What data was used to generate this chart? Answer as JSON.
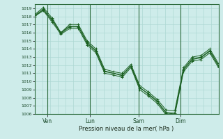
{
  "xlabel": "Pression niveau de la mer( hPa )",
  "background_color": "#ceecea",
  "grid_color": "#aed8d4",
  "line_color": "#1a6020",
  "vline_color": "#2a6a3a",
  "ylim": [
    1006,
    1019.5
  ],
  "yticks": [
    1006,
    1007,
    1008,
    1009,
    1010,
    1011,
    1012,
    1013,
    1014,
    1015,
    1016,
    1017,
    1018,
    1019
  ],
  "day_positions": [
    0.068,
    0.3,
    0.565,
    0.795
  ],
  "day_labels": [
    "Ven",
    "Lun",
    "Sam",
    "Dim"
  ],
  "series": [
    [
      1018.0,
      1018.8,
      1017.5,
      1016.0,
      1016.8,
      1016.8,
      1014.8,
      1013.8,
      1011.3,
      1011.0,
      1010.8,
      1011.9,
      1009.2,
      1008.5,
      1007.6,
      1006.2,
      1006.1,
      1011.5,
      1012.8,
      1013.0,
      1013.8,
      1012.0
    ],
    [
      1018.2,
      1019.1,
      1017.8,
      1016.0,
      1017.0,
      1017.0,
      1015.0,
      1014.0,
      1011.5,
      1011.2,
      1011.0,
      1012.1,
      1009.5,
      1008.7,
      1007.8,
      1006.5,
      1006.4,
      1011.7,
      1013.0,
      1013.2,
      1014.0,
      1012.2
    ],
    [
      1018.0,
      1018.7,
      1017.3,
      1015.8,
      1016.5,
      1016.5,
      1014.5,
      1013.5,
      1011.0,
      1010.8,
      1010.5,
      1011.7,
      1009.0,
      1008.2,
      1007.3,
      1005.9,
      1005.8,
      1011.2,
      1012.5,
      1012.7,
      1013.5,
      1011.7
    ],
    [
      1018.1,
      1018.9,
      1017.6,
      1015.9,
      1016.7,
      1016.7,
      1014.7,
      1013.7,
      1011.2,
      1011.0,
      1010.7,
      1011.9,
      1009.3,
      1008.4,
      1007.5,
      1006.1,
      1006.0,
      1011.4,
      1012.7,
      1012.9,
      1013.7,
      1011.9
    ]
  ]
}
